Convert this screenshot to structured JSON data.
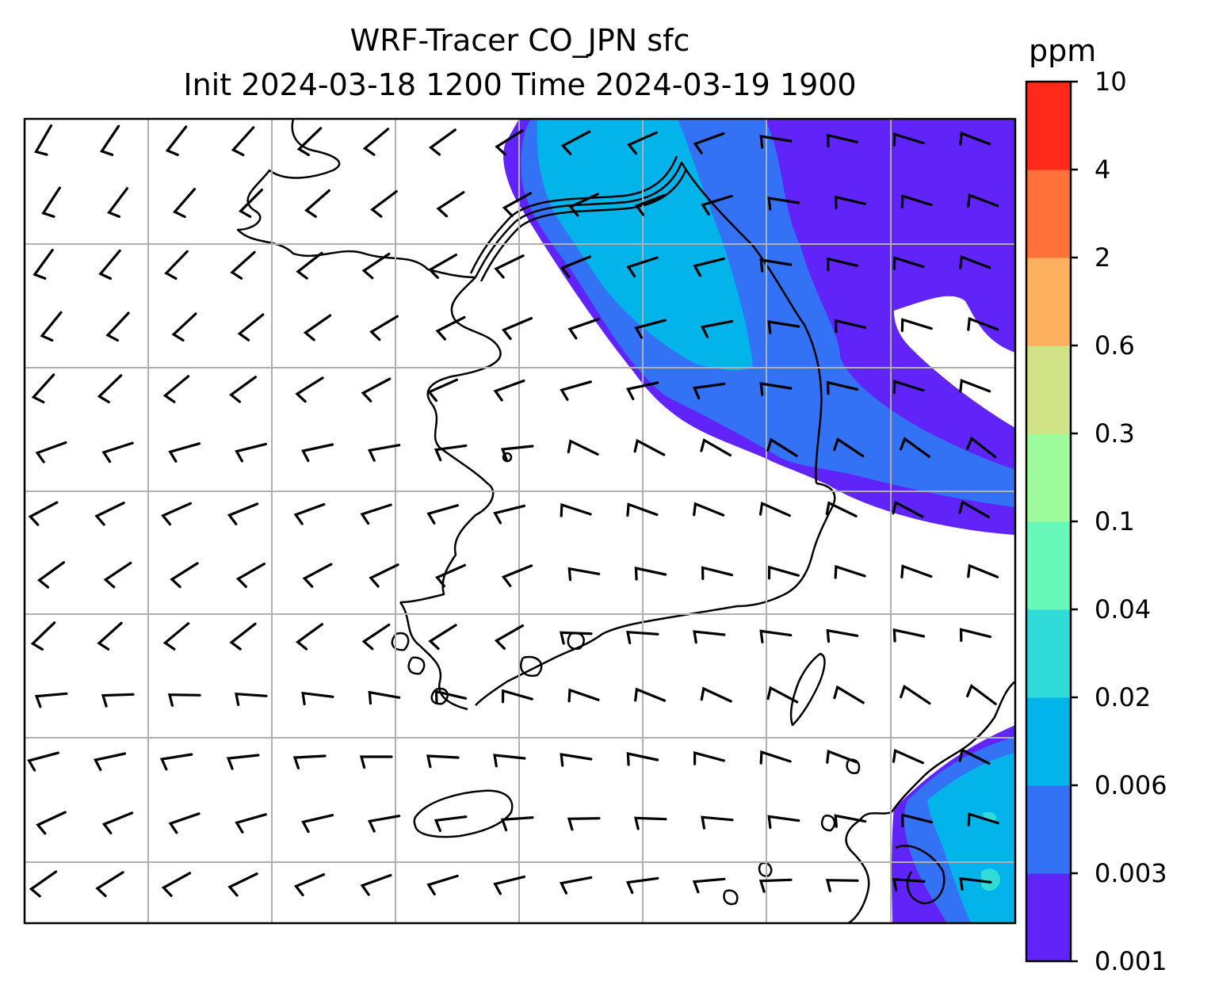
{
  "figure": {
    "title_line1": "WRF-Tracer CO_JPN sfc",
    "title_line2": "Init 2024-03-18 1200 Time 2024-03-19 1900"
  },
  "colorbar": {
    "unit": "ppm",
    "levels": [
      "0.001",
      "0.003",
      "0.006",
      "0.02",
      "0.04",
      "0.1",
      "0.3",
      "0.6",
      "2",
      "4",
      "10"
    ],
    "colors": [
      "#6024f8",
      "#3372f5",
      "#02b4ea",
      "#31dcd8",
      "#68f8ba",
      "#9dfb9c",
      "#d0e285",
      "#fdb15f",
      "#ff7138",
      "#ff2a19"
    ]
  },
  "map": {
    "tracer": "CO_JPN",
    "level": "sfc",
    "gridlines": true,
    "wind_barbs": true,
    "coastlines": true,
    "shaded_regions": [
      {
        "name": "north-plume",
        "levels": [
          "0.001",
          "0.003",
          "0.006"
        ]
      },
      {
        "name": "southeast-plume",
        "levels": [
          "0.001",
          "0.003",
          "0.006",
          "0.02"
        ]
      }
    ]
  }
}
